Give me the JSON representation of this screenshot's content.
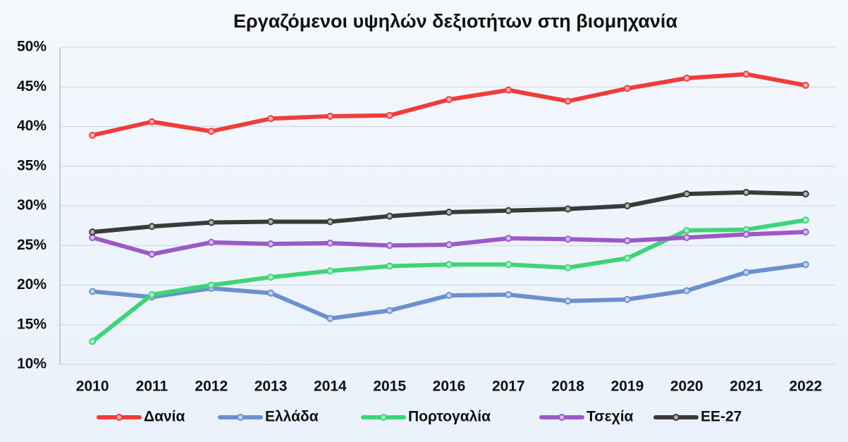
{
  "chart_data": {
    "type": "line",
    "title": "Εργαζόμενοι υψηλών δεξιοτήτων στη βιομηχανία",
    "categories": [
      "2010",
      "2011",
      "2012",
      "2013",
      "2014",
      "2015",
      "2016",
      "2017",
      "2018",
      "2019",
      "2020",
      "2021",
      "2022"
    ],
    "series": [
      {
        "name": "Δανία",
        "color": "#f03c3c",
        "values": [
          38.9,
          40.6,
          39.4,
          41.0,
          41.3,
          41.4,
          43.4,
          44.6,
          43.2,
          44.8,
          46.1,
          46.6,
          45.2
        ]
      },
      {
        "name": "Ελλάδα",
        "color": "#6c8fcf",
        "values": [
          19.2,
          18.5,
          19.6,
          19.0,
          15.8,
          16.8,
          18.7,
          18.8,
          18.0,
          18.2,
          19.3,
          21.6,
          22.6
        ]
      },
      {
        "name": "Πορτογαλία",
        "color": "#3ed47a",
        "values": [
          12.9,
          18.8,
          20.0,
          21.0,
          21.8,
          22.4,
          22.6,
          22.6,
          22.2,
          23.4,
          26.9,
          27.0,
          28.2
        ]
      },
      {
        "name": "Τσεχία",
        "color": "#9b59c6",
        "values": [
          26.0,
          23.9,
          25.4,
          25.2,
          25.3,
          25.0,
          25.1,
          25.9,
          25.8,
          25.6,
          26.0,
          26.4,
          26.7
        ]
      },
      {
        "name": "ΕΕ-27",
        "color": "#3a3a3a",
        "values": [
          26.7,
          27.4,
          27.9,
          28.0,
          28.0,
          28.7,
          29.2,
          29.4,
          29.6,
          30.0,
          31.5,
          31.7,
          31.5
        ]
      }
    ],
    "ylim": [
      10,
      50
    ],
    "yticks": [
      {
        "value": 10,
        "label": "10%"
      },
      {
        "value": 15,
        "label": "15%"
      },
      {
        "value": 20,
        "label": "20%"
      },
      {
        "value": 25,
        "label": "25%"
      },
      {
        "value": 30,
        "label": "30%"
      },
      {
        "value": 35,
        "label": "35%"
      },
      {
        "value": 40,
        "label": "40%"
      },
      {
        "value": 45,
        "label": "45%"
      },
      {
        "value": 50,
        "label": "50%"
      }
    ],
    "grid": true,
    "legend": "bottom"
  }
}
